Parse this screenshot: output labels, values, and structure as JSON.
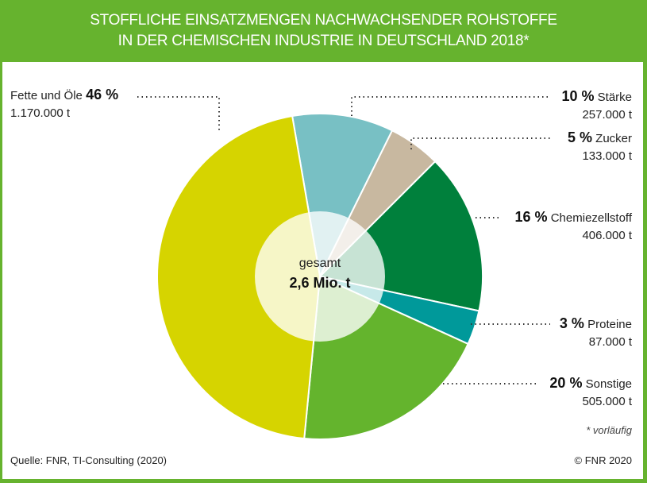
{
  "title": [
    "STOFFLICHE EINSATZMENGEN NACHWACHSENDER ROHSTOFFE",
    "IN DER CHEMISCHEN INDUSTRIE IN DEUTSCHLAND 2018*"
  ],
  "chart_data": {
    "type": "pie",
    "title": "STOFFLICHE EINSATZMENGEN NACHWACHSENDER ROHSTOFFE IN DER CHEMISCHEN INDUSTRIE IN DEUTSCHLAND 2018*",
    "center_label": "gesamt",
    "center_value": "2,6 Mio. t",
    "slices": [
      {
        "name": "Stärke",
        "percent": "10 %",
        "amount": "257.000 t",
        "value": 257000,
        "color": "#78c0c4"
      },
      {
        "name": "Zucker",
        "percent": "5 %",
        "amount": "133.000 t",
        "value": 133000,
        "color": "#c8b8a0"
      },
      {
        "name": "Chemiezellstoff",
        "percent": "16 %",
        "amount": "406.000 t",
        "value": 406000,
        "color": "#00803c"
      },
      {
        "name": "Proteine",
        "percent": "3 %",
        "amount": "87.000 t",
        "value": 87000,
        "color": "#00999a"
      },
      {
        "name": "Sonstige",
        "percent": "20 %",
        "amount": "505.000 t",
        "value": 505000,
        "color": "#64b42d"
      },
      {
        "name": "Fette und Öle",
        "percent": "46 %",
        "amount": "1.170.000 t",
        "value": 1170000,
        "color": "#d6d400"
      }
    ]
  },
  "note": "* vorläufig",
  "source": "Quelle: FNR, TI-Consulting (2020)",
  "copyright": "© FNR 2020"
}
